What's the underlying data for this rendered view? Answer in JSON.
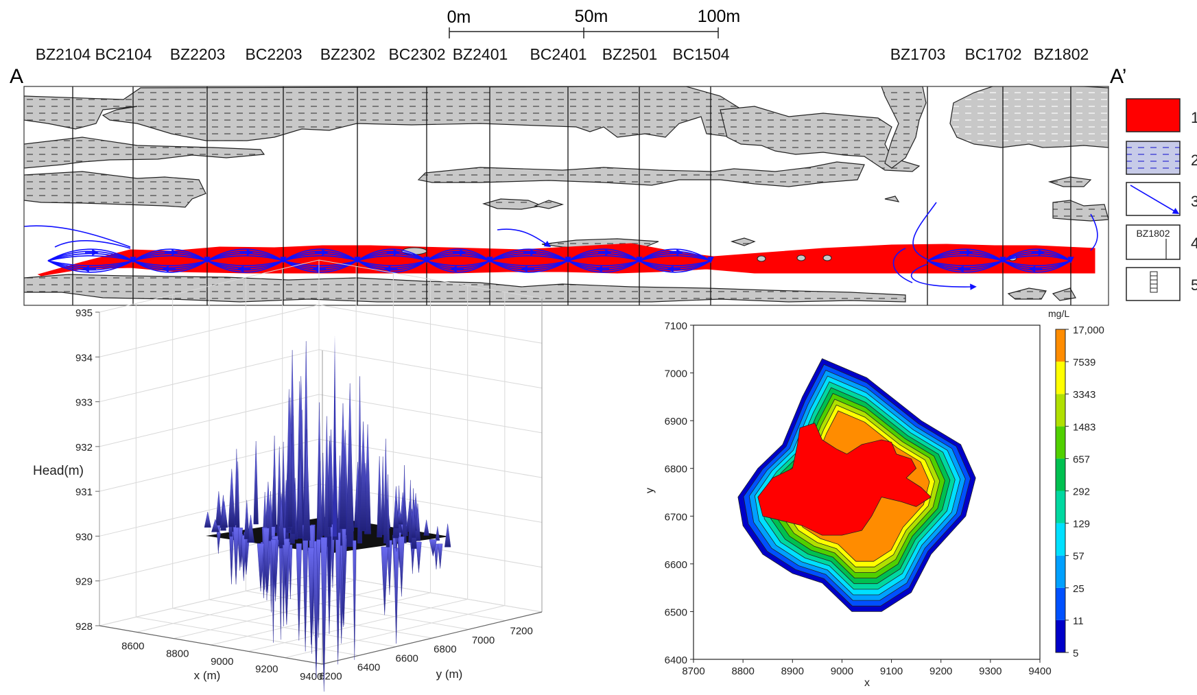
{
  "scale_bar": {
    "labels": [
      "0m",
      "50m",
      "100m"
    ]
  },
  "section": {
    "start_label": "A",
    "end_label": "A’",
    "boreholes": [
      "BZ2104",
      "BC2104",
      "BZ2203",
      "BC2203",
      "BZ2302",
      "BC2302",
      "BZ2401",
      "BC2401",
      "BZ2501",
      "BC1504",
      "BZ1703",
      "BC1702",
      "BZ1802"
    ]
  },
  "legend": {
    "items": [
      {
        "number": "1",
        "icon": "red-fill-swatch",
        "color": "#ff0000"
      },
      {
        "number": "2",
        "icon": "blue-dash-swatch",
        "color": "#c7cbe8"
      },
      {
        "number": "3",
        "icon": "flow-arrow-swatch",
        "color": "#1a1aff"
      },
      {
        "number": "4",
        "icon": "borehole-label-swatch",
        "label": "BZ1802"
      },
      {
        "number": "5",
        "icon": "screen-swatch"
      }
    ]
  },
  "chart_data": [
    {
      "type": "surface3d",
      "zlabel": "Head(m)",
      "xlabel": "x (m)",
      "ylabel": "y (m)",
      "z_ticks": [
        928,
        929,
        930,
        931,
        932,
        933,
        934,
        935
      ],
      "x_ticks": [
        8600,
        8800,
        9000,
        9200,
        9400
      ],
      "y_ticks": [
        6200,
        6400,
        6600,
        6800,
        7000,
        7200
      ],
      "zlim": [
        928,
        935
      ],
      "baseline_head": 930,
      "peak_head": 934.5,
      "trough_head": 928.3,
      "colors": {
        "surface": "#3a3ac8",
        "plane": "#111111"
      }
    },
    {
      "type": "contour",
      "xlabel": "x",
      "ylabel": "y",
      "unit": "mg/L",
      "xlim": [
        8700,
        9400
      ],
      "ylim": [
        6400,
        7100
      ],
      "x_ticks": [
        8700,
        8800,
        8900,
        9000,
        9100,
        9200,
        9300,
        9400
      ],
      "y_ticks": [
        6400,
        6500,
        6600,
        6700,
        6800,
        6900,
        7000,
        7100
      ],
      "levels": [
        "5",
        "11",
        "25",
        "57",
        "129",
        "292",
        "657",
        "1483",
        "3343",
        "7539",
        "17,000"
      ],
      "level_colors": [
        "#0000c8",
        "#0050ff",
        "#00a0ff",
        "#00e0ff",
        "#00d8a0",
        "#00c050",
        "#50d000",
        "#b0e000",
        "#ffff00",
        "#ff8c00",
        "#ff0000"
      ]
    }
  ]
}
